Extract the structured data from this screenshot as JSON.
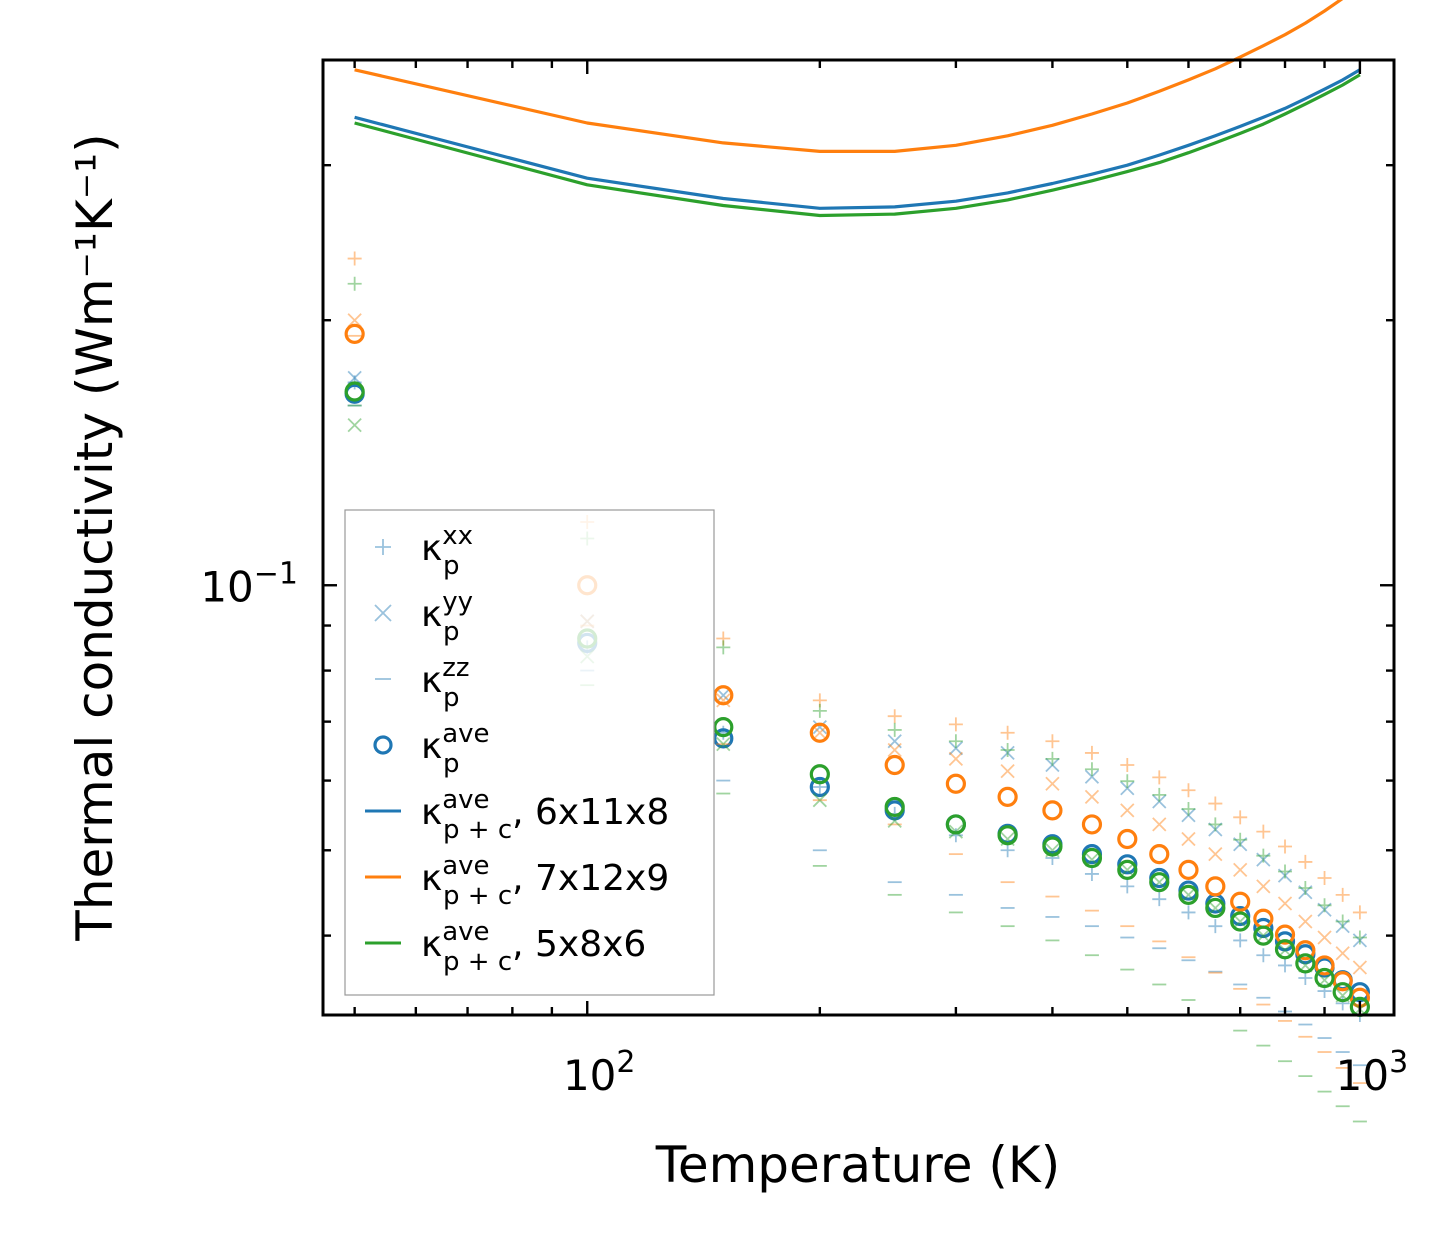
{
  "chart_data": {
    "type": "scatter",
    "xscale": "log",
    "yscale": "log",
    "xlabel": "Temperature (K)",
    "ylabel": "Thermal conductivity (Wm⁻¹K⁻¹)",
    "xlim": [
      45.5,
      1107
    ],
    "ylim": [
      0.0325,
      0.395
    ],
    "x_tick_labels": [
      {
        "value": 100,
        "base": "10",
        "exp": "2"
      },
      {
        "value": 1000,
        "base": "10",
        "exp": "3"
      }
    ],
    "y_tick_labels": [
      {
        "value": 0.1,
        "base": "10",
        "exp": "−1"
      }
    ],
    "legend": {
      "location": "lower-left",
      "entries": [
        {
          "kappa": "κ",
          "sub": "p",
          "sup": "xx",
          "suffix": "",
          "marker": "plus"
        },
        {
          "kappa": "κ",
          "sub": "p",
          "sup": "yy",
          "suffix": "",
          "marker": "cross"
        },
        {
          "kappa": "κ",
          "sub": "p",
          "sup": "zz",
          "suffix": "",
          "marker": "dash"
        },
        {
          "kappa": "κ",
          "sub": "p",
          "sup": "ave",
          "suffix": "",
          "marker": "circle"
        },
        {
          "kappa": "κ",
          "sub": "p + c",
          "sup": "ave",
          "suffix": ", 6x11x8",
          "marker": "line",
          "color": "#1f77b4"
        },
        {
          "kappa": "κ",
          "sub": "p + c",
          "sup": "ave",
          "suffix": ", 7x12x9",
          "marker": "line",
          "color": "#ff7f0e"
        },
        {
          "kappa": "κ",
          "sub": "p + c",
          "sup": "ave",
          "suffix": ", 5x8x6",
          "marker": "line",
          "color": "#2ca02c"
        }
      ]
    },
    "x": [
      50,
      100,
      150,
      200,
      250,
      300,
      350,
      400,
      450,
      500,
      550,
      600,
      650,
      700,
      750,
      800,
      850,
      900,
      950,
      1000
    ],
    "series": [
      {
        "name": "6x11x8",
        "color": "#1f77b4",
        "kp_xx": [
          0.17,
          0.085,
          0.068,
          0.059,
          0.055,
          0.052,
          0.05,
          0.049,
          0.047,
          0.0455,
          0.044,
          0.0425,
          0.041,
          0.0395,
          0.038,
          0.037,
          0.0358,
          0.0346,
          0.0335,
          0.0325
        ],
        "kp_yy": [
          0.172,
          0.091,
          0.075,
          0.069,
          0.0665,
          0.0653,
          0.0645,
          0.0625,
          0.0606,
          0.0588,
          0.0568,
          0.0548,
          0.0528,
          0.0508,
          0.0488,
          0.0468,
          0.0448,
          0.0428,
          0.041,
          0.0395
        ],
        "kp_zz": [
          0.16,
          0.08,
          0.06,
          0.05,
          0.046,
          0.0445,
          0.043,
          0.042,
          0.041,
          0.0398,
          0.0387,
          0.0375,
          0.0364,
          0.0352,
          0.034,
          0.0328,
          0.0317,
          0.0306,
          0.0295,
          0.0285
        ],
        "kp_ave": [
          0.165,
          0.086,
          0.067,
          0.059,
          0.0555,
          0.0535,
          0.0522,
          0.0508,
          0.0495,
          0.0482,
          0.0465,
          0.045,
          0.0435,
          0.0421,
          0.0408,
          0.0394,
          0.0381,
          0.0368,
          0.0356,
          0.0345
        ],
        "kpc_ave": [
          0.34,
          0.29,
          0.275,
          0.268,
          0.269,
          0.273,
          0.279,
          0.286,
          0.293,
          0.3,
          0.308,
          0.316,
          0.324,
          0.332,
          0.34,
          0.348,
          0.357,
          0.366,
          0.375,
          0.385
        ]
      },
      {
        "name": "7x12x9",
        "color": "#ff7f0e",
        "kp_xx": [
          0.235,
          0.118,
          0.087,
          0.074,
          0.071,
          0.0695,
          0.068,
          0.0665,
          0.0645,
          0.0625,
          0.0605,
          0.0585,
          0.0565,
          0.0545,
          0.0525,
          0.0505,
          0.0485,
          0.0465,
          0.0445,
          0.0425
        ],
        "kp_yy": [
          0.2,
          0.091,
          0.074,
          0.068,
          0.065,
          0.0635,
          0.0615,
          0.0595,
          0.0575,
          0.0555,
          0.0535,
          0.0515,
          0.0495,
          0.0475,
          0.0455,
          0.0435,
          0.0415,
          0.0398,
          0.0382,
          0.0368
        ],
        "kp_zz": [
          0.192,
          0.09,
          0.066,
          0.057,
          0.0535,
          0.0495,
          0.046,
          0.0443,
          0.0427,
          0.041,
          0.0394,
          0.0378,
          0.0363,
          0.0348,
          0.0334,
          0.032,
          0.0307,
          0.0295,
          0.0283,
          0.0272
        ],
        "kp_ave": [
          0.193,
          0.1,
          0.075,
          0.068,
          0.0625,
          0.0595,
          0.0575,
          0.0555,
          0.0535,
          0.0515,
          0.0495,
          0.0475,
          0.0455,
          0.0437,
          0.0418,
          0.0401,
          0.0385,
          0.037,
          0.0355,
          0.034
        ],
        "kpc_ave": [
          0.385,
          0.335,
          0.318,
          0.311,
          0.311,
          0.316,
          0.324,
          0.333,
          0.343,
          0.353,
          0.364,
          0.375,
          0.386,
          0.398,
          0.41,
          0.422,
          0.435,
          0.449,
          0.464,
          0.48
        ]
      },
      {
        "name": "5x8x6",
        "color": "#2ca02c",
        "kp_xx": [
          0.22,
          0.113,
          0.085,
          0.072,
          0.0685,
          0.0665,
          0.065,
          0.0635,
          0.0618,
          0.0599,
          0.0578,
          0.0557,
          0.0535,
          0.0514,
          0.0493,
          0.0473,
          0.0453,
          0.0433,
          0.0415,
          0.0398
        ],
        "kp_yy": [
          0.152,
          0.083,
          0.066,
          0.057,
          0.054,
          0.0525,
          0.0515,
          0.05,
          0.0488,
          0.0475,
          0.046,
          0.0445,
          0.043,
          0.0415,
          0.04,
          0.0385,
          0.037,
          0.0356,
          0.0342,
          0.033
        ],
        "kp_zz": [
          0.16,
          0.077,
          0.058,
          0.048,
          0.0445,
          0.0425,
          0.041,
          0.0395,
          0.038,
          0.0366,
          0.0352,
          0.0338,
          0.0325,
          0.0312,
          0.03,
          0.0288,
          0.0277,
          0.0266,
          0.0256,
          0.0246
        ],
        "kp_ave": [
          0.166,
          0.087,
          0.069,
          0.061,
          0.056,
          0.0535,
          0.052,
          0.0505,
          0.049,
          0.0475,
          0.046,
          0.0445,
          0.043,
          0.0415,
          0.04,
          0.0386,
          0.0372,
          0.0358,
          0.0345,
          0.0332
        ],
        "kpc_ave": [
          0.335,
          0.285,
          0.27,
          0.263,
          0.264,
          0.268,
          0.274,
          0.281,
          0.288,
          0.295,
          0.302,
          0.31,
          0.318,
          0.326,
          0.334,
          0.343,
          0.352,
          0.361,
          0.37,
          0.38
        ]
      }
    ]
  }
}
